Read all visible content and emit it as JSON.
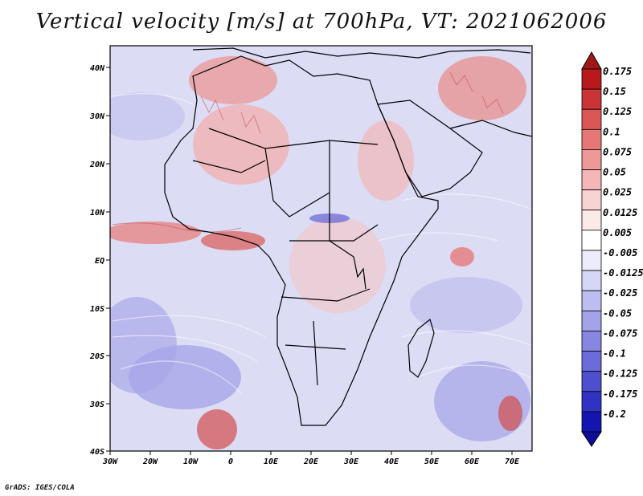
{
  "title": "Vertical velocity [m/s] at 700hPa, VT: 2021062006",
  "credit": "GrADS: IGES/COLA",
  "map": {
    "lon_labels": [
      "30W",
      "20W",
      "10W",
      "0",
      "10E",
      "20E",
      "30E",
      "40E",
      "50E",
      "60E",
      "70E"
    ],
    "lat_labels": [
      "40N",
      "30N",
      "20N",
      "10N",
      "EQ",
      "10S",
      "20S",
      "30S",
      "40S"
    ]
  },
  "legend": {
    "labels": [
      "0.175",
      "0.15",
      "0.125",
      "0.1",
      "0.075",
      "0.05",
      "0.025",
      "0.0125",
      "0.005",
      "-0.005",
      "-0.0125",
      "-0.025",
      "-0.05",
      "-0.075",
      "-0.1",
      "-0.125",
      "-0.175",
      "-0.2"
    ],
    "colors": [
      "#b8191b",
      "#cb3437",
      "#db5656",
      "#e67777",
      "#ee9898",
      "#f4b6b6",
      "#f9d2d2",
      "#fce9e9",
      "#ffffff",
      "#ececfb",
      "#d6d6f6",
      "#bdbdf1",
      "#a3a3ea",
      "#8787e2",
      "#6b6bd9",
      "#4e4ecf",
      "#3131c3",
      "#1414b0"
    ],
    "top_color": "#a11818",
    "bottom_color": "#0d0d9c"
  }
}
